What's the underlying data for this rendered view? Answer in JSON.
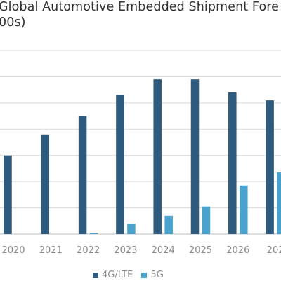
{
  "chart_data": {
    "type": "bar",
    "title_lines": [
      "Global Automotive Embedded Shipment Fore",
      "00s)"
    ],
    "categories": [
      "2020",
      "2021",
      "2022",
      "2023",
      "2024",
      "2025",
      "2026",
      "202"
    ],
    "series": [
      {
        "name": "4G/LTE",
        "color": "#2e5a7d",
        "values": [
          30,
          38,
          45,
          53,
          59,
          59,
          54,
          51
        ]
      },
      {
        "name": "5G",
        "color": "#4aa3cc",
        "values": [
          0,
          0,
          0.5,
          4,
          7,
          10.5,
          18.5,
          23.5
        ]
      }
    ],
    "ylim": [
      0,
      70
    ],
    "ygrid_step": 10,
    "grid": true,
    "legend_position": "bottom"
  }
}
